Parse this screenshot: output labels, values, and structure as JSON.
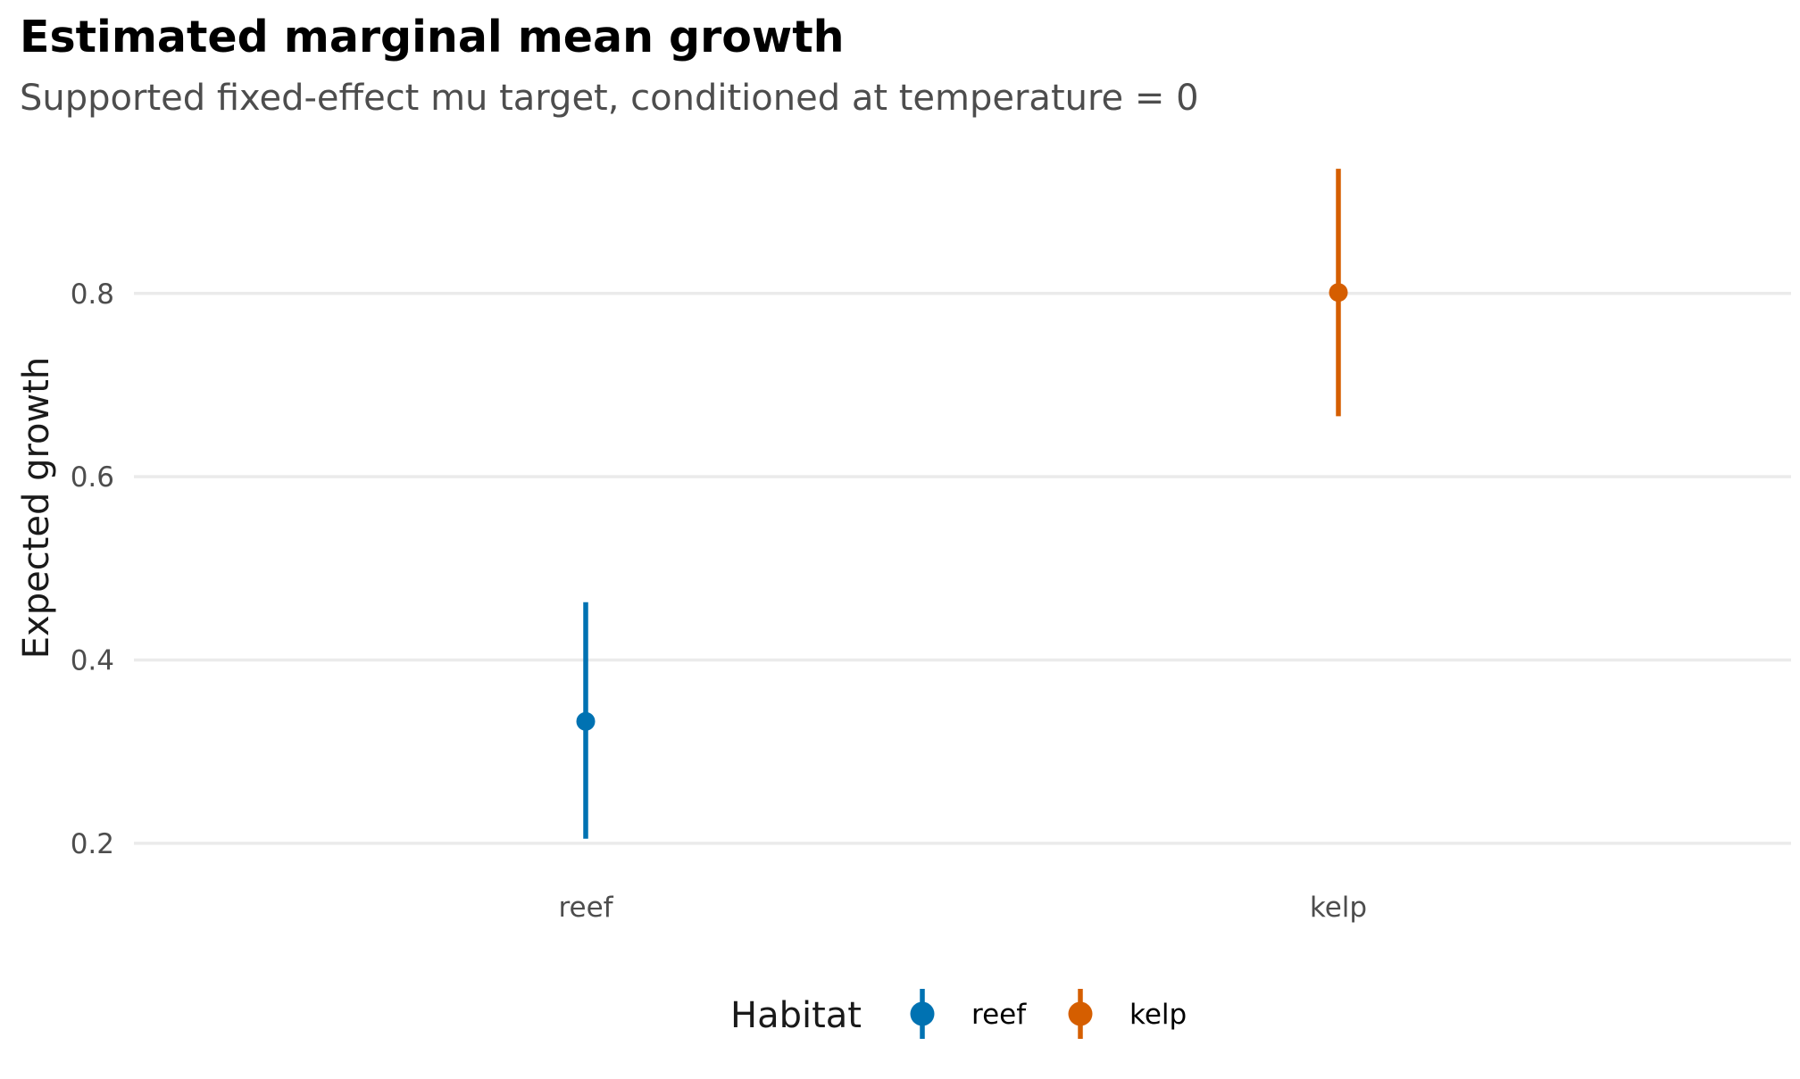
{
  "chart_data": {
    "type": "pointrange",
    "title": "Estimated marginal mean growth",
    "subtitle": "Supported fixed-effect mu target, conditioned at temperature = 0",
    "xlabel": "",
    "ylabel": "Expected growth",
    "categories": [
      "reef",
      "kelp"
    ],
    "y_ticks": [
      0.2,
      0.4,
      0.6,
      0.8
    ],
    "y_tick_labels": [
      "0.2",
      "0.4",
      "0.6",
      "0.8"
    ],
    "ylim": [
      0.195,
      0.94
    ],
    "grid": "horizontal-major",
    "legend": {
      "title": "Habitat",
      "position": "bottom",
      "entries": [
        "reef",
        "kelp"
      ]
    },
    "series": [
      {
        "name": "reef",
        "category": "reef",
        "estimate": 0.333,
        "lower": 0.205,
        "upper": 0.463,
        "color": "#0072B2"
      },
      {
        "name": "kelp",
        "category": "kelp",
        "estimate": 0.801,
        "lower": 0.666,
        "upper": 0.936,
        "color": "#D55E00"
      }
    ]
  }
}
